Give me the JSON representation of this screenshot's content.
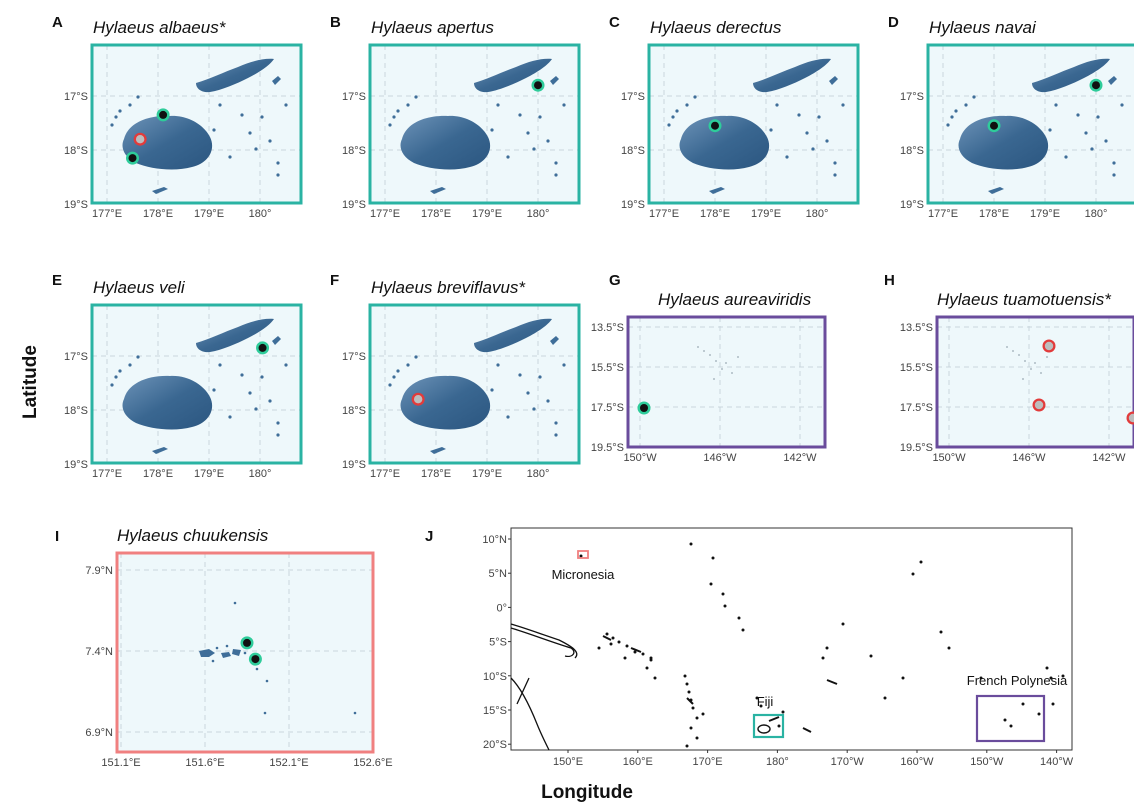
{
  "axes": {
    "x_title": "Longitude",
    "y_title": "Latitude"
  },
  "colors": {
    "fiji_frame": "#2ab3a3",
    "polynesia_frame": "#6a4c9c",
    "micronesia_frame": "#f08080",
    "panel_bg": "#eef8fb",
    "island_fill": "#3f6e99",
    "grid": "#c9d6dc",
    "green_ring": "#2ecc9a",
    "red_ring": "#e23b3b",
    "gray_point": "#bdbdbd"
  },
  "fiji_ticks": {
    "x": [
      "177°E",
      "178°E",
      "179°E",
      "180°"
    ],
    "y": [
      "17°S",
      "18°S",
      "19°S"
    ]
  },
  "polynesia_ticks": {
    "x": [
      "150°W",
      "146°W",
      "142°W"
    ],
    "y": [
      "13.5°S",
      "15.5°S",
      "17.5°S",
      "19.5°S"
    ]
  },
  "micronesia_ticks": {
    "x": [
      "151.1°E",
      "151.6°E",
      "152.1°E",
      "152.6°E"
    ],
    "y": [
      "7.9°N",
      "7.4°N",
      "6.9°N"
    ]
  },
  "world_ticks": {
    "x": [
      "150°E",
      "160°E",
      "170°E",
      "180°",
      "170°W",
      "160°W",
      "150°W",
      "140°W"
    ],
    "y": [
      "10°N",
      "5°N",
      "0°",
      "5°S",
      "10°S",
      "15°S",
      "20°S"
    ]
  },
  "panels": [
    {
      "label": "A",
      "title": "Hylaeus albaeus*",
      "region": "fiji",
      "records": [
        {
          "lon": 178.1,
          "lat": -17.35,
          "type": "green"
        },
        {
          "lon": 177.65,
          "lat": -17.8,
          "type": "red"
        },
        {
          "lon": 177.5,
          "lat": -18.15,
          "type": "green"
        }
      ]
    },
    {
      "label": "B",
      "title": "Hylaeus apertus",
      "region": "fiji",
      "records": [
        {
          "lon": 180.0,
          "lat": -16.8,
          "type": "green"
        }
      ]
    },
    {
      "label": "C",
      "title": "Hylaeus derectus",
      "region": "fiji",
      "records": [
        {
          "lon": 178.0,
          "lat": -17.55,
          "type": "green"
        }
      ]
    },
    {
      "label": "D",
      "title": "Hylaeus navai",
      "region": "fiji",
      "records": [
        {
          "lon": 178.0,
          "lat": -17.55,
          "type": "green"
        },
        {
          "lon": 180.0,
          "lat": -16.8,
          "type": "green"
        }
      ]
    },
    {
      "label": "E",
      "title": "Hylaeus veli",
      "region": "fiji",
      "records": [
        {
          "lon": 180.05,
          "lat": -16.85,
          "type": "green"
        }
      ]
    },
    {
      "label": "F",
      "title": "Hylaeus breviflavus*",
      "region": "fiji",
      "records": [
        {
          "lon": 177.65,
          "lat": -17.8,
          "type": "red"
        }
      ]
    },
    {
      "label": "G",
      "title": "Hylaeus aureaviridis",
      "region": "polynesia",
      "records": [
        {
          "lon": -149.8,
          "lat": -17.55,
          "type": "green"
        }
      ]
    },
    {
      "label": "H",
      "title": "Hylaeus tuamotuensis*",
      "region": "polynesia",
      "records": [
        {
          "lon": -145.0,
          "lat": -14.45,
          "type": "red"
        },
        {
          "lon": -145.5,
          "lat": -17.4,
          "type": "red"
        },
        {
          "lon": -140.8,
          "lat": -18.05,
          "type": "red"
        }
      ]
    },
    {
      "label": "I",
      "title": "Hylaeus chuukensis",
      "region": "micronesia",
      "records": [
        {
          "lon": 151.85,
          "lat": 7.45,
          "type": "green"
        },
        {
          "lon": 151.9,
          "lat": 7.35,
          "type": "green"
        }
      ]
    },
    {
      "label": "J",
      "title": "",
      "region": "world",
      "boxes": [
        {
          "name": "Micronesia",
          "color": "micronesia"
        },
        {
          "name": "Fiji",
          "color": "fiji"
        },
        {
          "name": "French Polynesia",
          "color": "polynesia"
        }
      ]
    }
  ]
}
